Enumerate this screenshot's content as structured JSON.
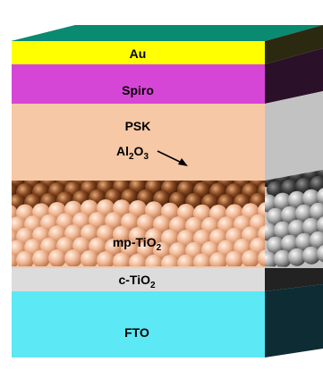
{
  "layers": [
    {
      "key": "au",
      "label": "Au",
      "front": "#ffff00",
      "side": "#2b2a10"
    },
    {
      "key": "spiro",
      "label": "Spiro",
      "front": "#d646d6",
      "side": "#2a1028"
    },
    {
      "key": "psk",
      "label": "PSK",
      "front": "#f6c8a6",
      "side": "#c2c2c2"
    },
    {
      "key": "mp",
      "label": "mp-TiO",
      "sub": "2",
      "front": "#f6c8a6",
      "side": "#c2c2c2"
    },
    {
      "key": "ctio2",
      "label": "c-TiO",
      "sub": "2",
      "front": "#dcdcdc",
      "side": "#222222"
    },
    {
      "key": "fto",
      "label": "FTO",
      "front": "#5ce8f4",
      "side": "#0e2c33"
    }
  ],
  "annotation": {
    "a": "Al",
    "a_sub": "2",
    "b": "O",
    "b_sub": "3"
  },
  "colors": {
    "top_face": "#0a8a70",
    "al2o3_sphere": "#8a4a22",
    "tio2_sphere": "#f2b894"
  }
}
